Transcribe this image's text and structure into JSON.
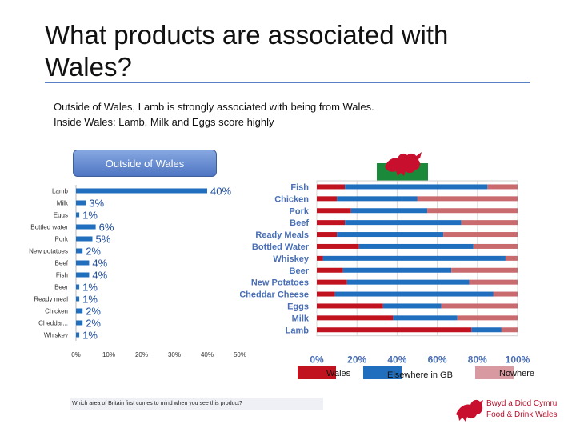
{
  "slide": {
    "title": "What products are associated with Wales?",
    "subtitle_line1": "Outside of Wales, Lamb is strongly associated with being from Wales.",
    "subtitle_line2": "Inside Wales: Lamb, Milk and Eggs score highly",
    "tab_label": "Outside of Wales",
    "footnote": "Which area of Britain first comes to mind when you see this product?",
    "brand_line1": "Bwyd a Diod Cymru",
    "brand_line2": "Food & Drink Wales",
    "colors": {
      "wales": "#c0121f",
      "gb": "#1f6fbe",
      "nowhere": "#c96a6f",
      "bar_left": "#1f6fbe",
      "accent": "#5b7fc7"
    }
  },
  "chart_data": [
    {
      "type": "bar",
      "orientation": "horizontal",
      "categories": [
        "Lamb",
        "Milk",
        "Eggs",
        "Bottled water",
        "Pork",
        "New potatoes",
        "Beef",
        "Fish",
        "Beer",
        "Ready meal",
        "Chicken",
        "Cheddar...",
        "Whiskey"
      ],
      "values": [
        40,
        3,
        1,
        6,
        5,
        2,
        4,
        4,
        1,
        1,
        2,
        2,
        1
      ],
      "value_labels": [
        "40%",
        "3%",
        "1%",
        "6%",
        "5%",
        "2%",
        "4%",
        "4%",
        "1%",
        "1%",
        "2%",
        "2%",
        "1%"
      ],
      "xlim": [
        0,
        50
      ],
      "xticks": [
        "0%",
        "10%",
        "20%",
        "30%",
        "40%",
        "50%"
      ],
      "grid": false
    },
    {
      "type": "bar",
      "orientation": "horizontal",
      "stacked": "100%",
      "categories": [
        "Fish",
        "Chicken",
        "Pork",
        "Beef",
        "Ready Meals",
        "Bottled Water",
        "Whiskey",
        "Beer",
        "New Potatoes",
        "Cheddar Cheese",
        "Eggs",
        "Milk",
        "Lamb"
      ],
      "series": [
        {
          "name": "Wales",
          "values": [
            14,
            10,
            17,
            14,
            10,
            21,
            3,
            13,
            15,
            9,
            33,
            38,
            77
          ]
        },
        {
          "name": "Elsewhere in GB",
          "values": [
            71,
            40,
            38,
            58,
            53,
            57,
            91,
            54,
            61,
            79,
            29,
            32,
            15
          ]
        },
        {
          "name": "Nowhere",
          "values": [
            15,
            50,
            45,
            28,
            37,
            22,
            6,
            33,
            24,
            12,
            38,
            30,
            8
          ]
        }
      ],
      "xlim": [
        0,
        100
      ],
      "xticks": [
        "0%",
        "20%",
        "40%",
        "60%",
        "80%",
        "100%"
      ],
      "grid": true,
      "legend": "bottom"
    }
  ]
}
